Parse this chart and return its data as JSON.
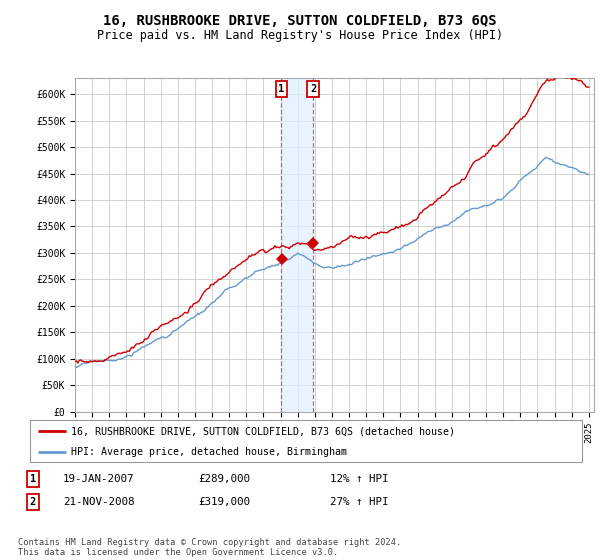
{
  "title": "16, RUSHBROOKE DRIVE, SUTTON COLDFIELD, B73 6QS",
  "subtitle": "Price paid vs. HM Land Registry's House Price Index (HPI)",
  "title_fontsize": 10,
  "subtitle_fontsize": 8.5,
  "ylim": [
    0,
    630000
  ],
  "yticks": [
    0,
    50000,
    100000,
    150000,
    200000,
    250000,
    300000,
    350000,
    400000,
    450000,
    500000,
    550000,
    600000
  ],
  "ytick_labels": [
    "£0",
    "£50K",
    "£100K",
    "£150K",
    "£200K",
    "£250K",
    "£300K",
    "£350K",
    "£400K",
    "£450K",
    "£500K",
    "£550K",
    "£600K"
  ],
  "year_start": 1995,
  "year_end": 2025,
  "hpi_color": "#6699cc",
  "price_color": "#cc0000",
  "sale1_year": 2007.05,
  "sale1_price": 289000,
  "sale2_year": 2008.9,
  "sale2_price": 319000,
  "legend_label1": "16, RUSHBROOKE DRIVE, SUTTON COLDFIELD, B73 6QS (detached house)",
  "legend_label2": "HPI: Average price, detached house, Birmingham",
  "table_row1": [
    "1",
    "19-JAN-2007",
    "£289,000",
    "12% ↑ HPI"
  ],
  "table_row2": [
    "2",
    "21-NOV-2008",
    "£319,000",
    "27% ↑ HPI"
  ],
  "footer": "Contains HM Land Registry data © Crown copyright and database right 2024.\nThis data is licensed under the Open Government Licence v3.0.",
  "background_color": "#ffffff",
  "grid_color": "#cccccc"
}
